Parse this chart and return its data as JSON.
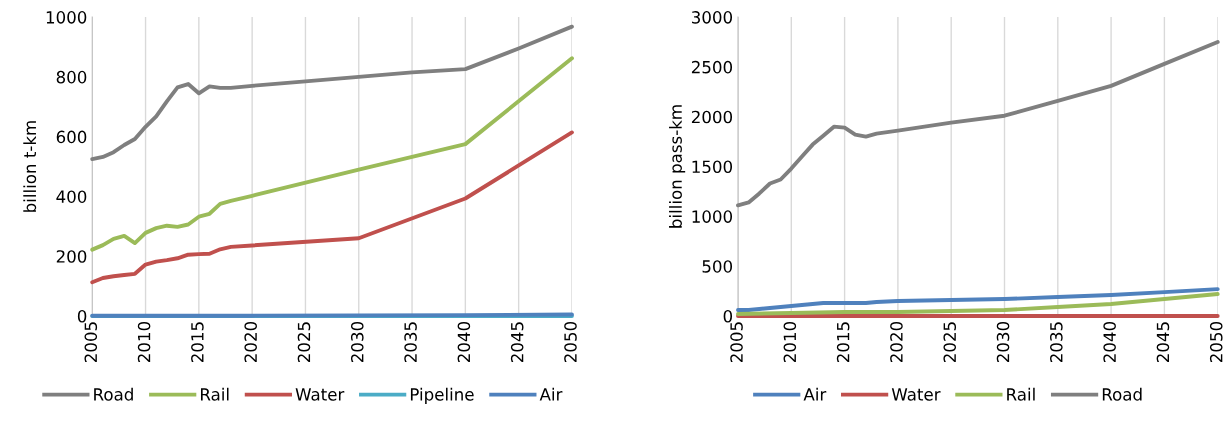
{
  "chart_data": [
    {
      "type": "line",
      "ylabel": "billion t-km",
      "xlim": [
        2005,
        2050
      ],
      "xticks": [
        2005,
        2010,
        2015,
        2020,
        2025,
        2030,
        2035,
        2040,
        2045,
        2050
      ],
      "ylim": [
        0,
        1000
      ],
      "yticks": [
        0,
        200,
        400,
        600,
        800,
        1000
      ],
      "grid": "x",
      "legend": "bottom",
      "marker": "none",
      "series": [
        {
          "name": "Road",
          "color": "#7f7f7f",
          "x": [
            2005,
            2006,
            2007,
            2008,
            2009,
            2010,
            2011,
            2012,
            2013,
            2014,
            2015,
            2016,
            2017,
            2018,
            2020,
            2025,
            2030,
            2035,
            2040,
            2045,
            2050
          ],
          "values": [
            525,
            532,
            548,
            572,
            592,
            633,
            668,
            718,
            765,
            776,
            745,
            768,
            763,
            763,
            770,
            785,
            800,
            815,
            826,
            895,
            968
          ]
        },
        {
          "name": "Rail",
          "color": "#9bbb59",
          "x": [
            2005,
            2006,
            2007,
            2008,
            2009,
            2010,
            2011,
            2012,
            2013,
            2014,
            2015,
            2016,
            2017,
            2018,
            2020,
            2030,
            2040,
            2050
          ],
          "values": [
            222,
            237,
            258,
            268,
            244,
            278,
            294,
            302,
            298,
            306,
            332,
            342,
            375,
            385,
            402,
            490,
            575,
            862
          ]
        },
        {
          "name": "Water",
          "color": "#c0504d",
          "x": [
            2005,
            2006,
            2007,
            2008,
            2009,
            2010,
            2011,
            2012,
            2013,
            2014,
            2015,
            2016,
            2017,
            2018,
            2020,
            2030,
            2040,
            2050
          ],
          "values": [
            113,
            127,
            133,
            137,
            141,
            172,
            182,
            187,
            193,
            205,
            207,
            208,
            223,
            231,
            236,
            260,
            393,
            614
          ]
        },
        {
          "name": "Pipeline",
          "color": "#4bacc6",
          "x": [
            2005,
            2050
          ],
          "values": [
            0,
            0
          ]
        },
        {
          "name": "Air",
          "color": "#4f81bd",
          "x": [
            2005,
            2020,
            2030,
            2040,
            2050
          ],
          "values": [
            1,
            1,
            2,
            3,
            5
          ]
        }
      ]
    },
    {
      "type": "line",
      "ylabel": "billion pass-km",
      "xlim": [
        2005,
        2050
      ],
      "xticks": [
        2005,
        2010,
        2015,
        2020,
        2025,
        2030,
        2035,
        2040,
        2045,
        2050
      ],
      "ylim": [
        0,
        3000
      ],
      "yticks": [
        0,
        500,
        1000,
        1500,
        2000,
        2500,
        3000
      ],
      "grid": "x",
      "legend": "bottom",
      "marker": "none",
      "series": [
        {
          "name": "Air",
          "color": "#4f81bd",
          "x": [
            2005,
            2006,
            2007,
            2008,
            2009,
            2010,
            2011,
            2012,
            2013,
            2014,
            2015,
            2016,
            2017,
            2018,
            2020,
            2025,
            2030,
            2035,
            2040,
            2045,
            2050
          ],
          "values": [
            60,
            60,
            70,
            80,
            90,
            100,
            110,
            120,
            130,
            130,
            130,
            130,
            130,
            140,
            150,
            160,
            170,
            190,
            210,
            240,
            270
          ]
        },
        {
          "name": "Water",
          "color": "#c0504d",
          "x": [
            2005,
            2050
          ],
          "values": [
            0,
            0
          ]
        },
        {
          "name": "Rail",
          "color": "#9bbb59",
          "x": [
            2005,
            2010,
            2015,
            2020,
            2025,
            2030,
            2035,
            2040,
            2045,
            2050
          ],
          "values": [
            20,
            30,
            40,
            40,
            50,
            60,
            90,
            120,
            170,
            220
          ]
        },
        {
          "name": "Road",
          "color": "#7f7f7f",
          "x": [
            2005,
            2006,
            2007,
            2008,
            2009,
            2010,
            2011,
            2012,
            2013,
            2014,
            2015,
            2016,
            2017,
            2018,
            2020,
            2025,
            2030,
            2035,
            2040,
            2045,
            2050
          ],
          "values": [
            1110,
            1140,
            1230,
            1330,
            1370,
            1480,
            1600,
            1720,
            1810,
            1900,
            1890,
            1820,
            1800,
            1830,
            1860,
            1940,
            2010,
            2160,
            2310,
            2530,
            2750
          ]
        }
      ]
    }
  ]
}
